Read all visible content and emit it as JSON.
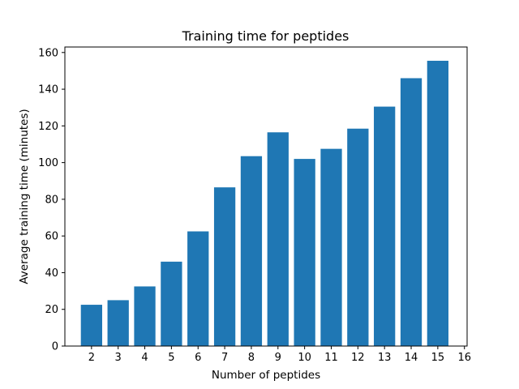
{
  "chart_data": {
    "type": "bar",
    "title": "Training time for peptides",
    "xlabel": "Number of peptides",
    "ylabel": "Average training time (minutes)",
    "categories": [
      2,
      3,
      4,
      5,
      6,
      7,
      8,
      9,
      10,
      11,
      12,
      13,
      14,
      15
    ],
    "values": [
      22.5,
      25,
      32.5,
      46,
      62.5,
      86.5,
      103.5,
      116.5,
      102,
      107.5,
      118.5,
      130.5,
      146,
      155.5
    ],
    "x_ticks": [
      "2",
      "3",
      "4",
      "5",
      "6",
      "7",
      "8",
      "9",
      "10",
      "11",
      "12",
      "13",
      "14",
      "15",
      "16"
    ],
    "y_ticks": [
      "0",
      "20",
      "40",
      "60",
      "80",
      "100",
      "120",
      "140",
      "160"
    ],
    "xlim": [
      1,
      16.1
    ],
    "ylim": [
      0,
      163
    ],
    "bar_color": "#1f77b4",
    "grid": false,
    "legend": "none"
  }
}
